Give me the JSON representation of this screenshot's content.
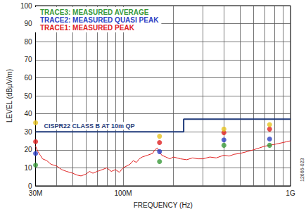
{
  "chart_data": {
    "type": "line",
    "log": "x",
    "grid": true,
    "legend": "top-left",
    "xlabel": "FREQUENCY (Hz)",
    "ylabel": "LEVEL (dBµV/m)",
    "xlim": [
      30000000,
      1000000000
    ],
    "xticks": [
      {
        "value": 30000000,
        "label": "30M"
      },
      {
        "value": 100000000,
        "label": "100M"
      },
      {
        "value": 1000000000,
        "label": "1G"
      }
    ],
    "ylim": [
      0,
      100
    ],
    "yticks": [
      0,
      10,
      20,
      30,
      40,
      50,
      60,
      70,
      80,
      90,
      100
    ],
    "series": [
      {
        "name": "TRACE3: MEASURED AVERAGE",
        "type": "scatter",
        "marker": "circle",
        "color": "#3a9a3a",
        "x": [
          30000000,
          165000000,
          400000000,
          750000000
        ],
        "values": [
          11.5,
          13.5,
          22.5,
          22.5
        ]
      },
      {
        "name": "TRACE2: MEASURED QUASI PEAK",
        "type": "scatter",
        "marker": "circle",
        "color": "#2b3fc4",
        "x": [
          30000000,
          165000000,
          400000000,
          750000000
        ],
        "values": [
          18,
          19,
          25.5,
          26
        ]
      },
      {
        "name": "TRACE1: MEASURED PEAK",
        "type": "line",
        "line_style": "solid",
        "color": "#e02020",
        "x": [
          30000000,
          31000000,
          32000000,
          33000000,
          35000000,
          37000000,
          40000000,
          43000000,
          46000000,
          50000000,
          53000000,
          56000000,
          60000000,
          63000000,
          66000000,
          70000000,
          75000000,
          80000000,
          85000000,
          90000000,
          95000000,
          100000000,
          105000000,
          110000000,
          115000000,
          120000000,
          125000000,
          130000000,
          140000000,
          150000000,
          155000000,
          160000000,
          165000000,
          170000000,
          180000000,
          190000000,
          200000000,
          220000000,
          240000000,
          260000000,
          280000000,
          300000000,
          330000000,
          360000000,
          400000000,
          430000000,
          460000000,
          500000000,
          550000000,
          600000000,
          650000000,
          700000000,
          750000000,
          800000000,
          850000000,
          900000000,
          950000000,
          1000000000
        ],
        "values": [
          22,
          19,
          17,
          15,
          14,
          12,
          11,
          9,
          8,
          7,
          6,
          5.5,
          6.5,
          8,
          7,
          8,
          9,
          10,
          8,
          9,
          7.5,
          10,
          11,
          12,
          14,
          13,
          15,
          16,
          17,
          18,
          20,
          21,
          19,
          17,
          16,
          15,
          16,
          15,
          14.5,
          15.5,
          15,
          15,
          16,
          15.5,
          17,
          16.5,
          17.5,
          18,
          19,
          20,
          21,
          22,
          22.5,
          23,
          23.5,
          24,
          24.5,
          25
        ]
      },
      {
        "type": "scatter",
        "marker": "circle",
        "color": "#e02020",
        "x": [
          30000000,
          165000000,
          400000000,
          750000000
        ],
        "values": [
          24.5,
          24,
          29.5,
          31.5
        ]
      },
      {
        "type": "scatter",
        "marker": "circle",
        "color": "#e6c21e",
        "x": [
          30000000,
          165000000,
          400000000,
          750000000
        ],
        "values": [
          35,
          27.5,
          31.5,
          34
        ]
      },
      {
        "type": "line",
        "line_style": "solid",
        "color": "#1f3a7a",
        "label": "CISPR22 CLASS B AT 10m QP",
        "x": [
          30000000,
          230000000,
          230000000,
          1000000000
        ],
        "values": [
          30,
          30,
          37,
          37
        ]
      }
    ],
    "annotations": [
      {
        "text": "12666-023"
      }
    ]
  }
}
